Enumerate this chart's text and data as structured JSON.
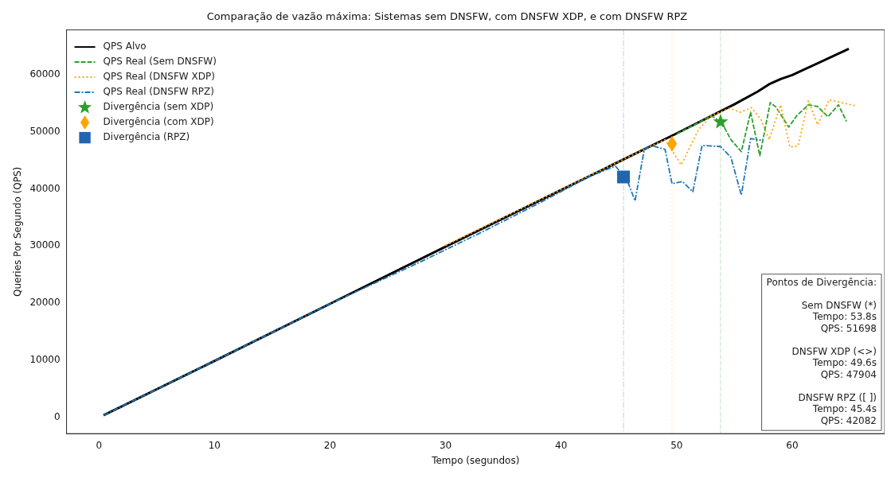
{
  "chart_data": {
    "type": "line",
    "title": "Comparação de vazão máxima: Sistemas sem DNSFW, com DNSFW XDP, e com DNSFW RPZ",
    "xlabel": "Tempo (segundos)",
    "ylabel": "Queries Por Segundo (QPS)",
    "xlim": [
      -2.8,
      68
    ],
    "ylim": [
      -2800,
      67800
    ],
    "xticks": [
      0,
      10,
      20,
      30,
      40,
      50,
      60
    ],
    "yticks": [
      0,
      10000,
      20000,
      30000,
      40000,
      50000,
      60000
    ],
    "grid": false,
    "legend": "top left",
    "series": [
      {
        "name": "QPS Alvo",
        "color": "#000000",
        "line_style": "solid",
        "x": [
          0.4,
          10,
          20,
          30,
          40,
          50,
          55,
          57,
          58,
          59,
          60,
          64.9
        ],
        "values": [
          400,
          9900,
          19900,
          29900,
          39800,
          49700,
          54800,
          57000,
          58300,
          59200,
          59900,
          64500
        ]
      },
      {
        "name": "QPS Real (Sem DNSFW)",
        "color": "#2ca02c",
        "line_style": "dashed",
        "x": [
          50,
          52,
          53.0,
          53.9,
          54.7,
          55.6,
          56.4,
          57.2,
          58.1,
          58.6,
          59.7,
          60.4,
          61.4,
          62.2,
          63.1,
          64.0,
          64.7
        ],
        "values": [
          49600,
          51700,
          52800,
          51600,
          48600,
          46500,
          53400,
          45800,
          55100,
          54300,
          50800,
          52800,
          54700,
          54400,
          52600,
          54700,
          51800
        ]
      },
      {
        "name": "QPS Real (DNSFW XDP)",
        "color": "#ffa500",
        "line_style": "dotted",
        "x": [
          30,
          40,
          47.8,
          49.0,
          50.4,
          51.9,
          53.0,
          54.6,
          55.5,
          56.5,
          57.3,
          58.0,
          59.0,
          59.8,
          60.5,
          61.4,
          62.2,
          63.2,
          64.0,
          65.5
        ],
        "values": [
          30100,
          39900,
          47500,
          48600,
          44200,
          50400,
          52800,
          54100,
          53400,
          54200,
          52100,
          48600,
          54700,
          47300,
          47500,
          55400,
          51200,
          55600,
          55200,
          54500
        ]
      },
      {
        "name": "QPS Real (DNSFW RPZ)",
        "color": "#1f77b4",
        "line_style": "dashdot",
        "x": [
          0.4,
          10,
          20,
          28,
          33,
          38,
          42.4,
          44.7,
          45.7,
          46.4,
          47.2,
          47.8,
          49.0,
          49.6,
          50.5,
          51.4,
          52.2,
          53.8,
          54.7,
          55.6,
          56.4,
          57.3
        ],
        "values": [
          400,
          9900,
          19900,
          27400,
          32300,
          37400,
          42100,
          44000,
          41600,
          37900,
          46900,
          47600,
          46900,
          40900,
          41300,
          39500,
          47600,
          47400,
          45500,
          38900,
          48800,
          48500
        ]
      },
      {
        "name": "Divergência (sem XDP)",
        "type": "scatter",
        "color": "#2ca02c",
        "marker": "star",
        "x": [
          53.8
        ],
        "values": [
          51698
        ]
      },
      {
        "name": "Divergência (com XDP)",
        "type": "scatter",
        "color": "#ffa500",
        "marker": "diamond",
        "x": [
          49.6
        ],
        "values": [
          47904
        ]
      },
      {
        "name": "Divergência (RPZ)",
        "type": "scatter",
        "color": "#2166ac",
        "marker": "square",
        "x": [
          45.4
        ],
        "values": [
          42082
        ]
      }
    ],
    "ref_lines": [
      {
        "axis": "x",
        "value": 45.4,
        "color": "#b4d2e8",
        "line_style": "dashdot"
      },
      {
        "axis": "x",
        "value": 49.6,
        "color": "#ffe0a8",
        "line_style": "dotted"
      },
      {
        "axis": "x",
        "value": 53.8,
        "color": "#bfe3bf",
        "line_style": "dashed"
      }
    ],
    "annotations": [
      "Pontos de Divergência:\n\nSem DNSFW (*)\nTempo: 53.8s\nQPS: 51698\n\nDNSFW XDP (<>)\nTempo: 49.6s\nQPS: 47904\n\nDNSFW RPZ ([ ])\nTempo: 45.4s\nQPS: 42082"
    ]
  }
}
